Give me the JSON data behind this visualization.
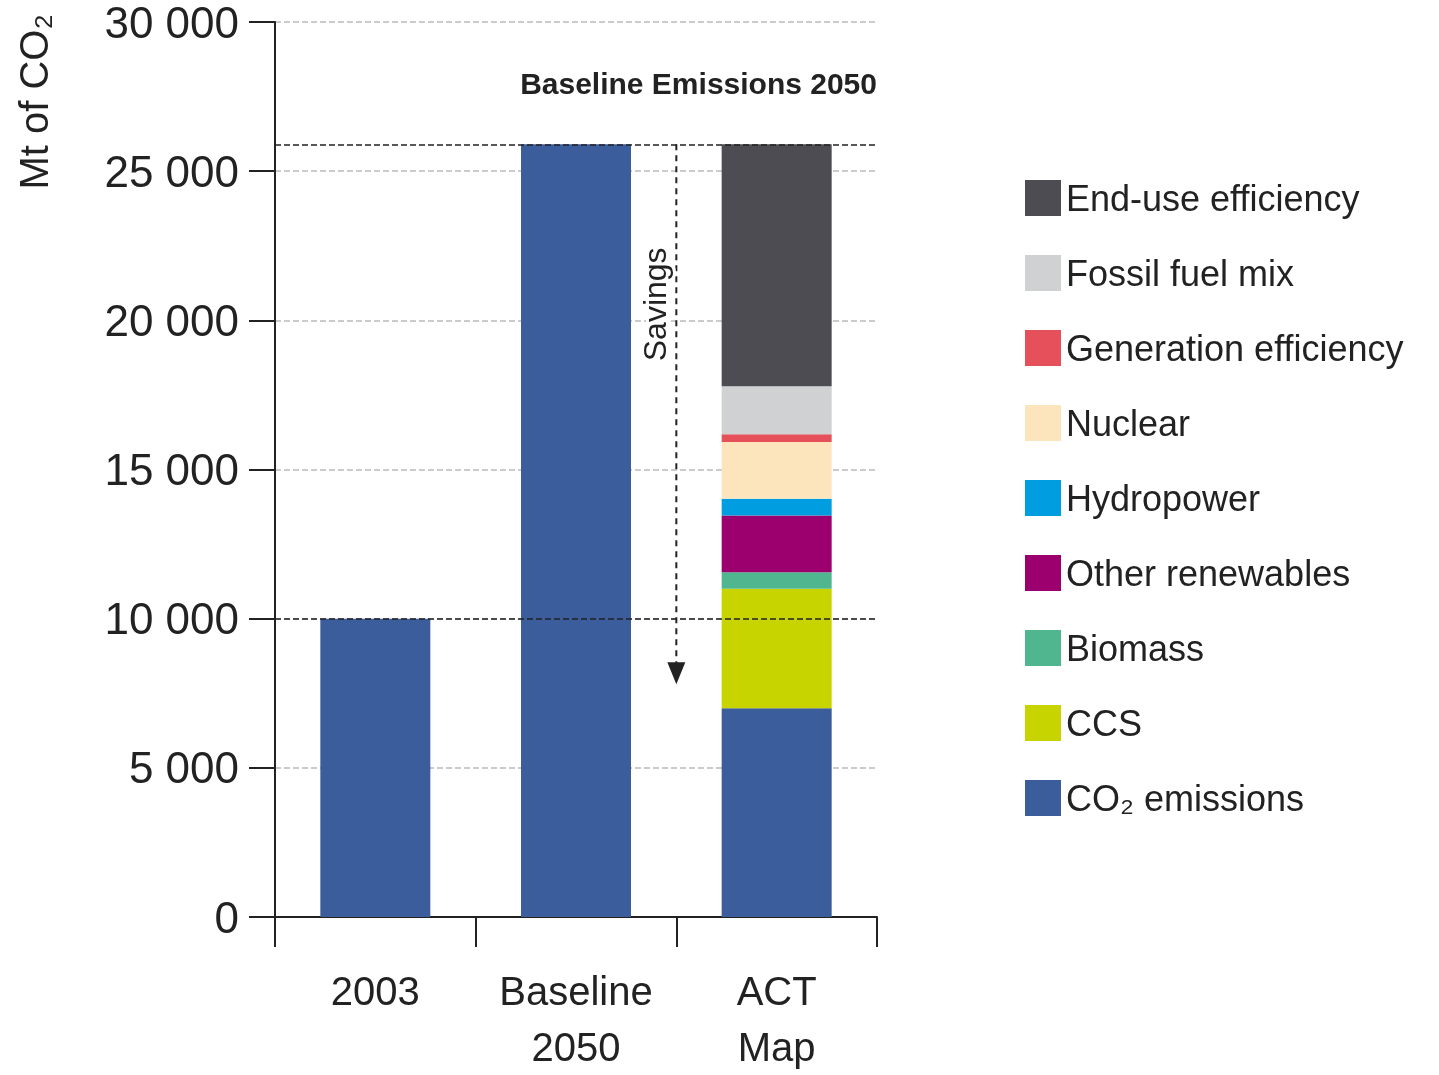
{
  "chart_data": {
    "type": "bar",
    "stacked": true,
    "ylabel": "Mt of CO₂",
    "categories": [
      "2003",
      "Baseline\n2050",
      "ACT\nMap"
    ],
    "series": [
      {
        "name": "CO₂ emissions",
        "color": "#3b5d9c",
        "values": [
          10000,
          25900,
          7000
        ]
      },
      {
        "name": "CCS",
        "color": "#c8d400",
        "values": [
          null,
          null,
          4000
        ]
      },
      {
        "name": "Biomass",
        "color": "#4fb68f",
        "values": [
          null,
          null,
          560
        ]
      },
      {
        "name": "Other renewables",
        "color": "#9b006e",
        "values": [
          null,
          null,
          1900
        ]
      },
      {
        "name": "Hydropower",
        "color": "#009de0",
        "values": [
          null,
          null,
          560
        ]
      },
      {
        "name": "Nuclear",
        "color": "#fce4bd",
        "values": [
          null,
          null,
          1900
        ]
      },
      {
        "name": "Generation efficiency",
        "color": "#e6505a",
        "values": [
          null,
          null,
          260
        ]
      },
      {
        "name": "Fossil fuel mix",
        "color": "#d0d1d3",
        "values": [
          null,
          null,
          1610
        ]
      },
      {
        "name": "End-use efficiency",
        "color": "#4d4c52",
        "values": [
          null,
          null,
          8110
        ]
      }
    ],
    "ylim": [
      0,
      30000
    ],
    "yticks": [
      {
        "value": 0,
        "label": "0"
      },
      {
        "value": 5000,
        "label": "5 000"
      },
      {
        "value": 10000,
        "label": "10 000"
      },
      {
        "value": 15000,
        "label": "15 000"
      },
      {
        "value": 20000,
        "label": "20 000"
      },
      {
        "value": 25000,
        "label": "25 000"
      },
      {
        "value": 30000,
        "label": "30 000"
      }
    ],
    "grid": "y",
    "legend": "right",
    "ref_lines": [
      {
        "axis": "y",
        "value": 25900,
        "label": "Baseline Emissions 2050",
        "color": "#222222",
        "line_style": "dashed"
      },
      {
        "axis": "y",
        "value": 10000,
        "label": null,
        "color": "#222222",
        "line_style": "dashed"
      }
    ],
    "annotations": [
      "Savings"
    ]
  }
}
